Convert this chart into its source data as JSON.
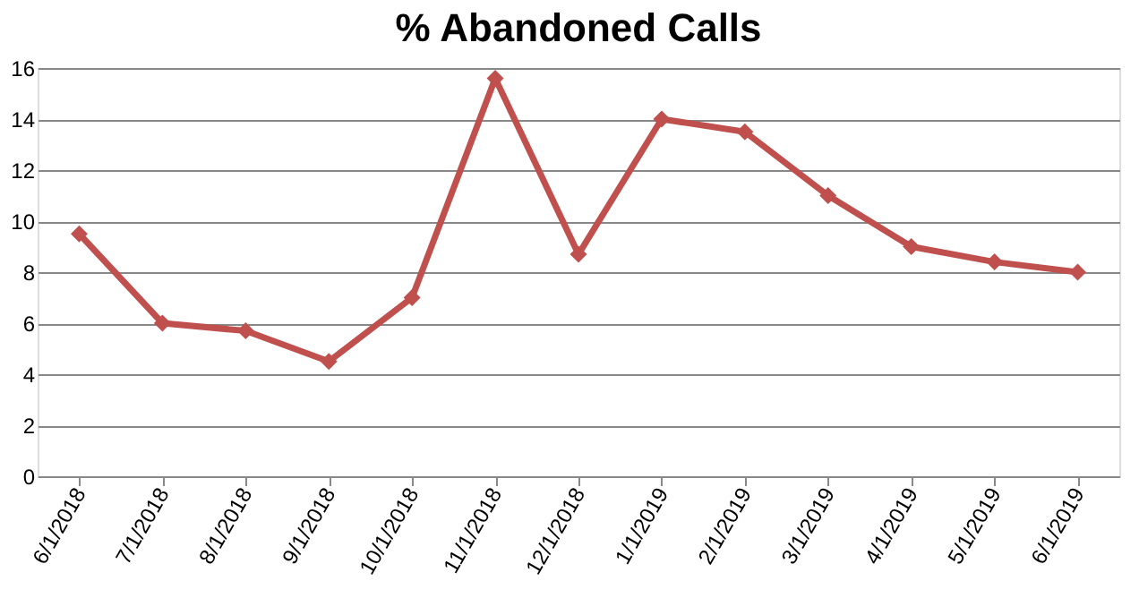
{
  "chart_data": {
    "type": "line",
    "title": "% Abandoned Calls",
    "categories": [
      "6/1/2018",
      "7/1/2018",
      "8/1/2018",
      "9/1/2018",
      "10/1/2018",
      "11/1/2018",
      "12/1/2018",
      "1/1/2019",
      "2/1/2019",
      "3/1/2019",
      "4/1/2019",
      "5/1/2019",
      "6/1/2019"
    ],
    "series": [
      {
        "color": "#c0504d",
        "values": [
          9.5,
          6.0,
          5.7,
          4.5,
          7.0,
          15.6,
          8.7,
          14.0,
          13.5,
          11.0,
          9.0,
          8.4,
          8.0
        ]
      }
    ],
    "ylim": [
      0,
      16
    ],
    "yticks": [
      0,
      2,
      4,
      6,
      8,
      10,
      12,
      14,
      16
    ],
    "grid": "y",
    "marker": "diamond",
    "line_style": "solid"
  }
}
